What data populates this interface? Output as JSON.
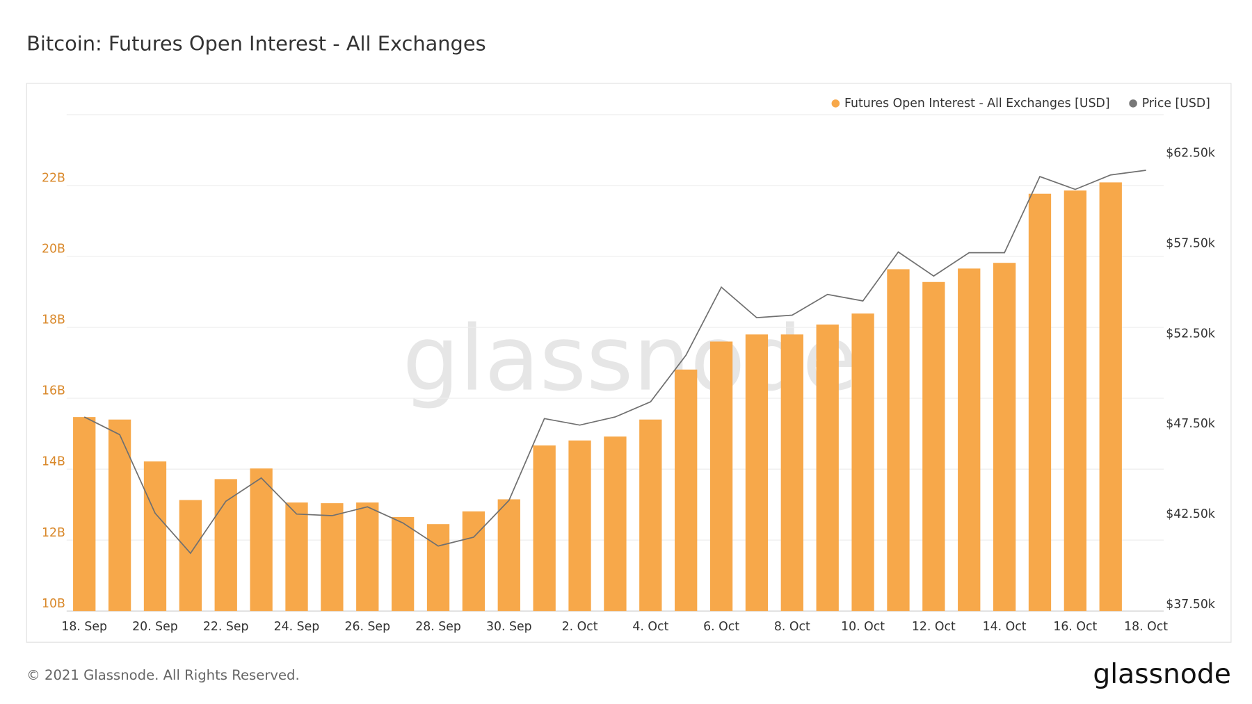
{
  "chart_data": {
    "type": "bar-line",
    "title": "Bitcoin: Futures Open Interest - All Exchanges",
    "watermark": "glassnode",
    "footer": "© 2021 Glassnode. All Rights Reserved.",
    "logo": "glassnode",
    "legend": "top-right",
    "grid": true,
    "categories": [
      "18. Sep",
      null,
      "20. Sep",
      null,
      "22. Sep",
      null,
      "24. Sep",
      null,
      "26. Sep",
      null,
      "28. Sep",
      null,
      "30. Sep",
      null,
      "2. Oct",
      null,
      "4. Oct",
      null,
      "6. Oct",
      null,
      "8. Oct",
      null,
      "10. Oct",
      null,
      "12. Oct",
      null,
      "14. Oct",
      null,
      "16. Oct",
      null,
      "18. Oct"
    ],
    "series": [
      {
        "name": "Futures Open Interest - All Exchanges [USD]",
        "type": "bar",
        "color": "#f7a84a",
        "values": [
          15.47,
          15.4,
          14.22,
          13.13,
          13.72,
          14.02,
          13.06,
          13.04,
          13.06,
          12.65,
          12.45,
          12.81,
          13.15,
          14.67,
          14.81,
          14.92,
          15.4,
          16.81,
          17.6,
          17.8,
          17.8,
          18.08,
          18.39,
          19.64,
          19.28,
          19.66,
          19.82,
          21.77,
          21.86,
          22.09,
          null
        ]
      },
      {
        "name": "Price [USD]",
        "type": "line",
        "axis": "y2",
        "color": "#707070",
        "values": [
          48250,
          47270,
          42920,
          40700,
          43580,
          44870,
          42870,
          42780,
          43270,
          42380,
          41100,
          41590,
          43630,
          48160,
          47800,
          48250,
          49090,
          51670,
          55440,
          53750,
          53890,
          55040,
          54680,
          57390,
          56060,
          57350,
          57350,
          61570,
          60860,
          61660,
          61920
        ]
      }
    ],
    "ylim": [
      10,
      24
    ],
    "yticks": [
      {
        "value": 10,
        "label": "10B"
      },
      {
        "value": 12,
        "label": "12B"
      },
      {
        "value": 14,
        "label": "14B"
      },
      {
        "value": 16,
        "label": "16B"
      },
      {
        "value": 18,
        "label": "18B"
      },
      {
        "value": 20,
        "label": "20B"
      },
      {
        "value": 22,
        "label": "22B"
      }
    ],
    "y2lim": [
      37500,
      65000
    ],
    "y2ticks": [
      {
        "value": 37500,
        "label": "$37.50k"
      },
      {
        "value": 42500,
        "label": "$42.50k"
      },
      {
        "value": 47500,
        "label": "$47.50k"
      },
      {
        "value": 52500,
        "label": "$52.50k"
      },
      {
        "value": 57500,
        "label": "$57.50k"
      },
      {
        "value": 62500,
        "label": "$62.50k"
      }
    ]
  }
}
